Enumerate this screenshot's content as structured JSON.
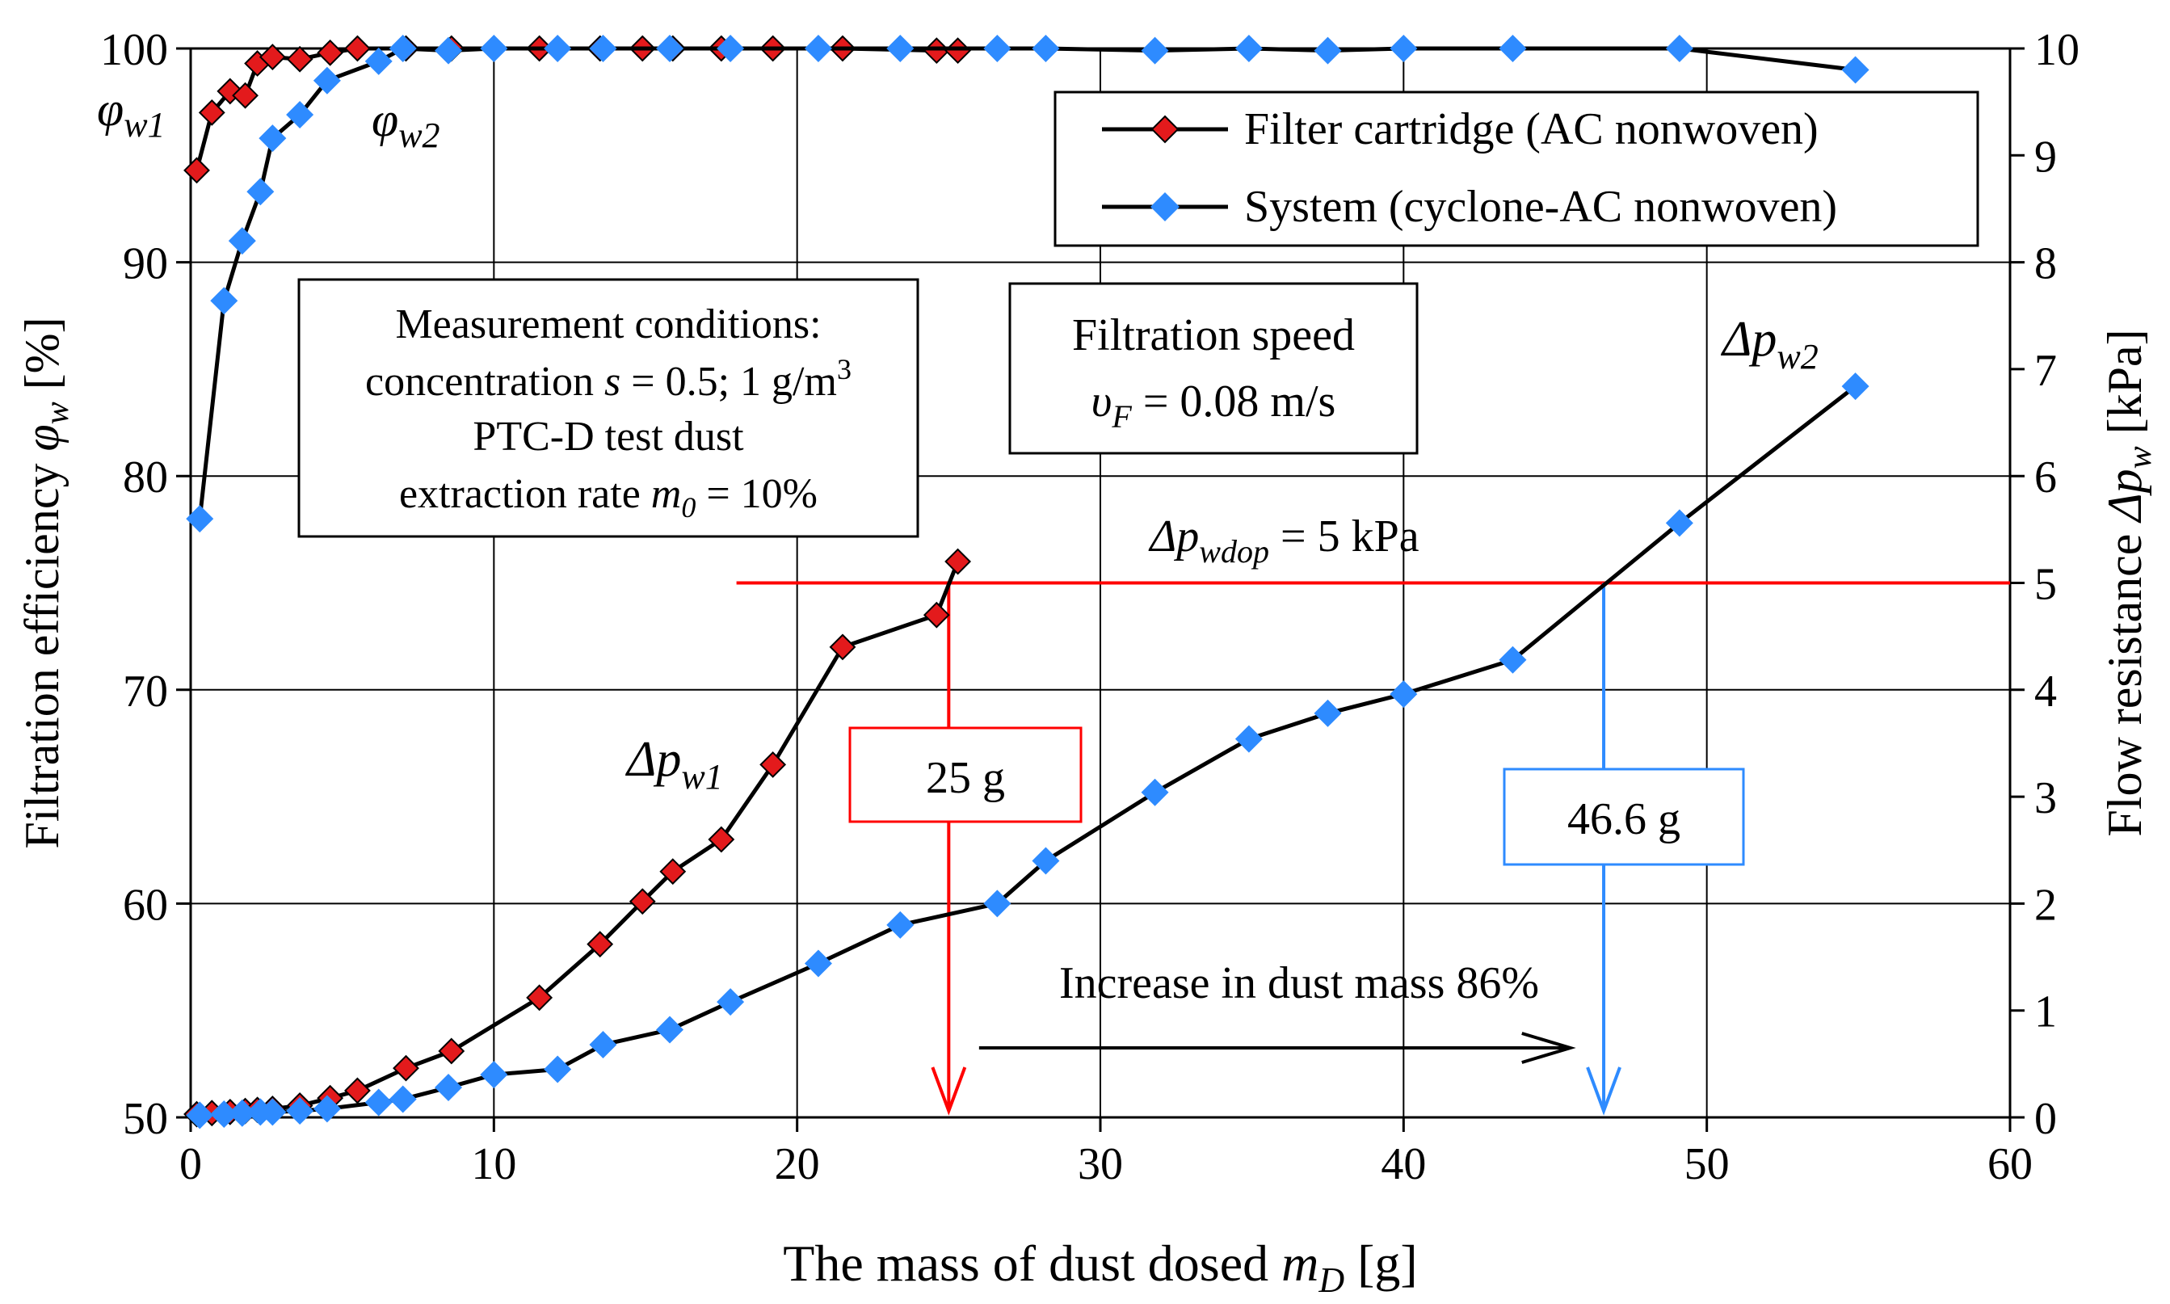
{
  "chart_data": {
    "type": "line",
    "xlabel": {
      "main": "The mass of dust dosed ",
      "var": "m",
      "sub": "D",
      "unit": " [g]"
    },
    "ylabel_left": {
      "main": "Filtration efficiency ",
      "var": "φ",
      "sub": "w",
      "unit": " [%]"
    },
    "ylabel_right": {
      "main": "Flow resistance ",
      "var": "Δp",
      "sub": "w",
      "unit": " [kPa]"
    },
    "xlim": [
      0,
      60
    ],
    "ylim_left": [
      50,
      100
    ],
    "ylim_right": [
      0,
      10
    ],
    "x_ticks": [
      "0",
      "10",
      "20",
      "30",
      "40",
      "50",
      "60"
    ],
    "y_left_ticks": [
      "50",
      "60",
      "70",
      "80",
      "90",
      "100"
    ],
    "y_right_ticks": [
      "0",
      "1",
      "2",
      "3",
      "4",
      "5",
      "6",
      "7",
      "8",
      "9",
      "10"
    ],
    "grid": true,
    "series": [
      {
        "name": "Filter cartridge (AC nonwoven)",
        "color": "#e31a1c",
        "axis": "left",
        "quantity": "efficiency",
        "points": [
          [
            0.2,
            94.3
          ],
          [
            0.7,
            97.0
          ],
          [
            1.3,
            98.0
          ],
          [
            1.8,
            97.8
          ],
          [
            2.2,
            99.3
          ],
          [
            2.7,
            99.6
          ],
          [
            3.6,
            99.5
          ],
          [
            4.6,
            99.8
          ],
          [
            5.5,
            100
          ],
          [
            7.1,
            100
          ],
          [
            8.6,
            100
          ],
          [
            11.5,
            100
          ],
          [
            13.5,
            100
          ],
          [
            14.9,
            100
          ],
          [
            15.9,
            100
          ],
          [
            17.5,
            100
          ],
          [
            19.2,
            100
          ],
          [
            21.5,
            100
          ],
          [
            24.6,
            99.9
          ],
          [
            25.3,
            99.9
          ]
        ]
      },
      {
        "name": "Filter cartridge (AC nonwoven)",
        "color": "#e31a1c",
        "axis": "right",
        "quantity": "resistance",
        "points": [
          [
            0.2,
            0.03
          ],
          [
            0.7,
            0.04
          ],
          [
            1.3,
            0.05
          ],
          [
            1.8,
            0.06
          ],
          [
            2.2,
            0.07
          ],
          [
            2.7,
            0.08
          ],
          [
            3.6,
            0.11
          ],
          [
            4.6,
            0.18
          ],
          [
            5.5,
            0.25
          ],
          [
            7.1,
            0.46
          ],
          [
            8.6,
            0.62
          ],
          [
            11.5,
            1.12
          ],
          [
            13.5,
            1.62
          ],
          [
            14.9,
            2.02
          ],
          [
            15.9,
            2.3
          ],
          [
            17.5,
            2.6
          ],
          [
            19.2,
            3.3
          ],
          [
            21.5,
            4.4
          ],
          [
            24.6,
            4.7
          ],
          [
            25.3,
            5.2
          ]
        ]
      },
      {
        "name": "System (cyclone-AC nonwoven)",
        "color": "#2e8bff",
        "axis": "left",
        "quantity": "efficiency",
        "points": [
          [
            0.3,
            78.0
          ],
          [
            1.1,
            88.2
          ],
          [
            1.7,
            91.0
          ],
          [
            2.3,
            93.3
          ],
          [
            2.7,
            95.8
          ],
          [
            3.6,
            96.9
          ],
          [
            4.5,
            98.5
          ],
          [
            6.2,
            99.4
          ],
          [
            7.0,
            100
          ],
          [
            8.5,
            99.9
          ],
          [
            10.0,
            100
          ],
          [
            12.1,
            100
          ],
          [
            13.6,
            100
          ],
          [
            15.8,
            100
          ],
          [
            17.8,
            100
          ],
          [
            20.7,
            100
          ],
          [
            23.4,
            100
          ],
          [
            26.6,
            100
          ],
          [
            28.2,
            100
          ],
          [
            31.8,
            99.9
          ],
          [
            34.9,
            100
          ],
          [
            37.5,
            99.9
          ],
          [
            40.0,
            100
          ],
          [
            43.6,
            100
          ],
          [
            49.1,
            100
          ],
          [
            54.9,
            99.0
          ]
        ]
      },
      {
        "name": "System (cyclone-AC nonwoven)",
        "color": "#2e8bff",
        "axis": "right",
        "quantity": "resistance",
        "points": [
          [
            0.3,
            0.02
          ],
          [
            1.1,
            0.03
          ],
          [
            1.7,
            0.04
          ],
          [
            2.3,
            0.05
          ],
          [
            2.7,
            0.05
          ],
          [
            3.6,
            0.06
          ],
          [
            4.5,
            0.08
          ],
          [
            6.2,
            0.14
          ],
          [
            7.0,
            0.17
          ],
          [
            8.5,
            0.28
          ],
          [
            10.0,
            0.4
          ],
          [
            12.1,
            0.45
          ],
          [
            13.6,
            0.68
          ],
          [
            15.8,
            0.82
          ],
          [
            17.8,
            1.08
          ],
          [
            20.7,
            1.44
          ],
          [
            23.4,
            1.8
          ],
          [
            26.6,
            2.0
          ],
          [
            28.2,
            2.4
          ],
          [
            31.8,
            3.04
          ],
          [
            34.9,
            3.54
          ],
          [
            37.5,
            3.78
          ],
          [
            40.0,
            3.96
          ],
          [
            43.6,
            4.28
          ],
          [
            49.1,
            5.56
          ],
          [
            54.9,
            6.84
          ]
        ]
      }
    ],
    "legend": {
      "position": "top-right",
      "entries": [
        "Filter cartridge (AC nonwoven)",
        "System (cyclone-AC nonwoven)"
      ]
    },
    "threshold": {
      "value": 5,
      "x_from": 18,
      "x_to": 60,
      "color": "#ff0000",
      "label_main": "Δp",
      "label_sub": "wdop",
      "label_rest": " = 5 kPa"
    },
    "markers": [
      {
        "x": 25,
        "label": "25 g",
        "color": "#ff0000"
      },
      {
        "x": 46.6,
        "label": "46.6 g",
        "color": "#2e8bff"
      }
    ],
    "increase_arrow": {
      "x_from": 26,
      "x_to": 45.5,
      "y_right": 0.65,
      "label": "Increase in dust mass 86%"
    },
    "annotations": {
      "phi_w1": {
        "var": "φ",
        "sub": "w1"
      },
      "phi_w2": {
        "var": "φ",
        "sub": "w2"
      },
      "dp_w1": {
        "var": "Δp",
        "sub": "w1"
      },
      "dp_w2": {
        "var": "Δp",
        "sub": "w2"
      }
    },
    "conditions_box": {
      "line1": "Measurement conditions:",
      "line2_pre": "concentration ",
      "line2_var": "s",
      "line2_mid": " = 0.5; 1 g/m",
      "line2_sup": "3",
      "line3": "PTC-D test dust",
      "line4_pre": "extraction rate ",
      "line4_var": "m",
      "line4_sub": "0",
      "line4_post": " = 10%"
    },
    "speed_box": {
      "line1": "Filtration speed",
      "line2_var": "υ",
      "line2_sub": "F",
      "line2_post": " = 0.08 m/s"
    }
  }
}
